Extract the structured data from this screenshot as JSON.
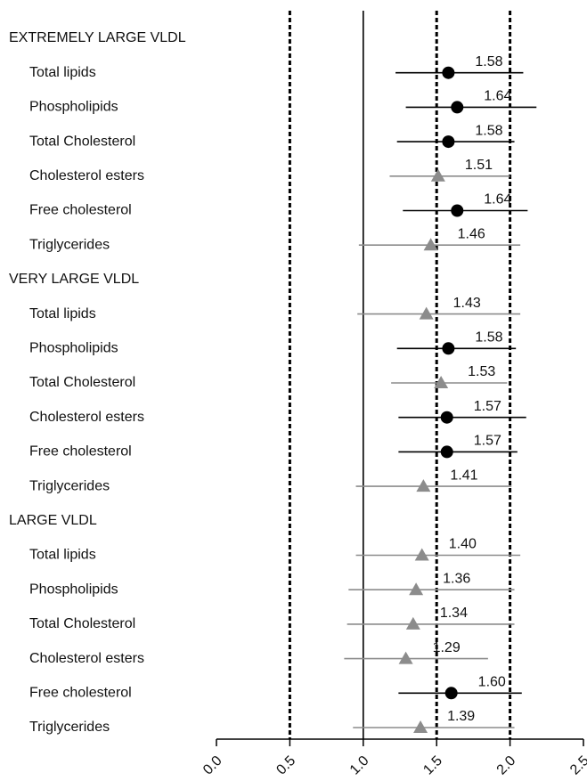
{
  "chart_data": {
    "type": "forest",
    "xlim": [
      0,
      2.5
    ],
    "xticks": [
      {
        "value": 0,
        "label": "0.0"
      },
      0.5,
      {
        "value": 1,
        "label": "1.0"
      },
      1.5,
      {
        "value": 2,
        "label": "2.0"
      },
      2.5
    ],
    "reference_lines": [
      {
        "value": 0.5,
        "style": "dashed"
      },
      {
        "value": 1,
        "style": "solid"
      },
      {
        "value": 1.5,
        "style": "dashed"
      },
      {
        "value": 2,
        "style": "dashed"
      }
    ],
    "marker_styles": {
      "circle": {
        "color": "#000000"
      },
      "triangle": {
        "color": "#8c8c8c"
      }
    },
    "groups": [
      {
        "name": "EXTREMELY LARGE VLDL",
        "categories": [
          "Total lipids",
          "Phospholipids",
          "Total Cholesterol",
          "Cholesterol esters",
          "Free cholesterol",
          "Triglycerides"
        ],
        "values": [
          1.58,
          1.64,
          1.58,
          1.51,
          1.64,
          1.46
        ],
        "value_labels": [
          "1.58",
          "1.64",
          "1.58",
          "1.51",
          "1.64",
          "1.46"
        ],
        "lower": [
          1.22,
          1.29,
          1.23,
          1.18,
          1.27,
          0.97
        ],
        "upper": [
          2.09,
          2.18,
          2.03,
          2.0,
          2.12,
          2.07
        ],
        "markers": [
          "circle",
          "circle",
          "circle",
          "triangle",
          "circle",
          "triangle"
        ]
      },
      {
        "name": "VERY LARGE VLDL",
        "categories": [
          "Total lipids",
          "Phospholipids",
          "Total Cholesterol",
          "Cholesterol esters",
          "Free cholesterol",
          "Triglycerides"
        ],
        "values": [
          1.43,
          1.58,
          1.53,
          1.57,
          1.57,
          1.41
        ],
        "value_labels": [
          "1.43",
          "1.58",
          "1.53",
          "1.57",
          "1.57",
          "1.41"
        ],
        "lower": [
          0.96,
          1.23,
          1.19,
          1.24,
          1.24,
          0.95
        ],
        "upper": [
          2.07,
          2.04,
          1.98,
          2.11,
          2.05,
          2.01
        ],
        "markers": [
          "triangle",
          "circle",
          "triangle",
          "circle",
          "circle",
          "triangle"
        ]
      },
      {
        "name": "LARGE VLDL",
        "categories": [
          "Total lipids",
          "Phospholipids",
          "Total Cholesterol",
          "Cholesterol esters",
          "Free cholesterol",
          "Triglycerides"
        ],
        "values": [
          1.4,
          1.36,
          1.34,
          1.29,
          1.6,
          1.39
        ],
        "value_labels": [
          "1.40",
          "1.36",
          "1.34",
          "1.29",
          "1.60",
          "1.39"
        ],
        "lower": [
          0.95,
          0.9,
          0.89,
          0.87,
          1.24,
          0.93
        ],
        "upper": [
          2.07,
          2.03,
          2.03,
          1.85,
          2.08,
          2.03
        ],
        "markers": [
          "triangle",
          "triangle",
          "triangle",
          "triangle",
          "circle",
          "triangle"
        ]
      }
    ]
  }
}
